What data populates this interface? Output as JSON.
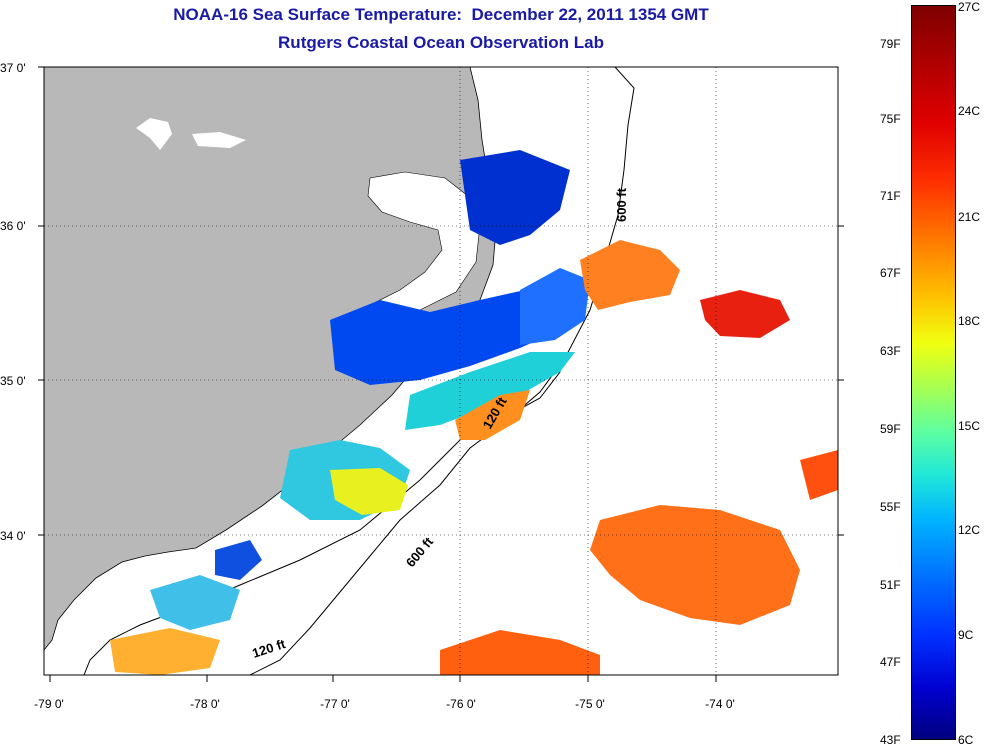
{
  "title": {
    "line1": "NOAA-16 Sea Surface Temperature:  December 22, 2011 1354 GMT",
    "line2": "Rutgers Coastal Ocean Observation Lab"
  },
  "map": {
    "y_ticks": [
      "37 0'",
      "36 0'",
      "35 0'",
      "34 0'"
    ],
    "x_ticks": [
      "-79 0'",
      "-78 0'",
      "-77 0'",
      "-76 0'",
      "-75 0'",
      "-74 0'"
    ],
    "isobath_labels": {
      "shelf_inner_north": "600 ft",
      "shelf_mid": "120 ft",
      "shelf_outer_south": "600 ft",
      "shelf_inner_south": "120 ft"
    },
    "land_color": "#b8b8b8",
    "cloud_color": "#ffffff"
  },
  "colorbar": {
    "fahrenheit": [
      "79F",
      "75F",
      "71F",
      "67F",
      "63F",
      "59F",
      "55F",
      "51F",
      "47F",
      "43F"
    ],
    "celsius": [
      "27C",
      "24C",
      "21C",
      "18C",
      "15C",
      "12C",
      "9C",
      "6C"
    ]
  }
}
